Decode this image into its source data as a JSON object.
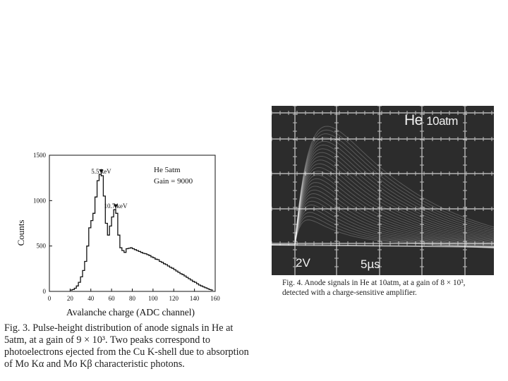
{
  "figure3": {
    "chart_data": {
      "type": "line",
      "xlabel": "Avalanche charge (ADC channel)",
      "ylabel": "Counts",
      "xlim": [
        0,
        160
      ],
      "ylim": [
        0,
        1500
      ],
      "xticks": [
        "0",
        "20",
        "40",
        "60",
        "80",
        "100",
        "120",
        "140",
        "160"
      ],
      "yticks": [
        "0",
        "500",
        "1000",
        "1500"
      ],
      "legend": [
        "He 5atm",
        "Gain = 9000"
      ],
      "annotations": [
        {
          "text": "5.5 keV",
          "x": 50,
          "y": 1275
        },
        {
          "text": "10.7 keV",
          "x": 64,
          "y": 890
        }
      ],
      "x": [
        20,
        22,
        24,
        26,
        28,
        30,
        32,
        34,
        36,
        38,
        40,
        42,
        44,
        46,
        48,
        50,
        52,
        54,
        56,
        58,
        60,
        62,
        64,
        66,
        68,
        70,
        72,
        74,
        76,
        78,
        80,
        82,
        84,
        86,
        88,
        90,
        92,
        94,
        96,
        98,
        100,
        102,
        104,
        106,
        108,
        110,
        112,
        114,
        116,
        118,
        120,
        122,
        124,
        126,
        128,
        130,
        132,
        134,
        136,
        138,
        140,
        142,
        144,
        146,
        148,
        150,
        152,
        154,
        156
      ],
      "values": [
        15,
        20,
        35,
        60,
        100,
        160,
        230,
        330,
        500,
        700,
        780,
        860,
        1040,
        1220,
        1290,
        1275,
        1050,
        750,
        620,
        720,
        820,
        900,
        860,
        620,
        480,
        450,
        430,
        470,
        475,
        480,
        470,
        460,
        450,
        440,
        430,
        420,
        415,
        405,
        395,
        380,
        370,
        355,
        350,
        330,
        320,
        305,
        295,
        280,
        265,
        255,
        240,
        225,
        210,
        195,
        185,
        170,
        155,
        140,
        125,
        110,
        100,
        85,
        70,
        60,
        50,
        40,
        30,
        20,
        15
      ]
    },
    "caption": {
      "line1": "Fig. 3. Pulse-height distribution of anode signals in He at",
      "line2": "5atm, at a gain of 9 × 10³. Two peaks correspond to",
      "line3": "photoelectrons ejected from the Cu K-shell due to absorption",
      "line4": "of Mo Kα and Mo Kβ characteristic photons."
    }
  },
  "figure4": {
    "scope": {
      "gas": "He",
      "pressure": "10atm",
      "volts_per_div": "2V",
      "time_per_div": "5µs",
      "background": "#2c2c2c"
    },
    "caption": {
      "line1": "Fig. 4. Anode signals in He at 10atm, at a gain of 8 × 10³,",
      "line2": "detected with a charge-sensitive amplifier."
    }
  }
}
